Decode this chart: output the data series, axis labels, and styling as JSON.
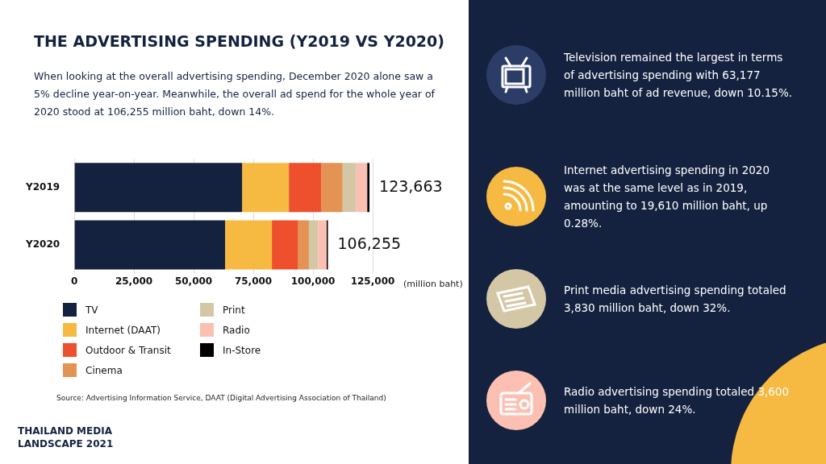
{
  "chart_data": {
    "type": "bar",
    "orientation": "horizontal",
    "stacked": true,
    "title": "THE ADVERTISING SPENDING (Y2019 VS Y2020)",
    "subtitle": "When looking at the overall advertising spending, December 2020 alone saw a 5% decline year-on-year. Meanwhile, the overall ad spend for the whole year of 2020 stood at 106,255 million baht, down 14%.",
    "xlabel": "(million baht)",
    "categories": [
      "Y2019",
      "Y2020"
    ],
    "series": [
      {
        "name": "TV",
        "color": "#142240",
        "values": [
          70300,
          63177
        ]
      },
      {
        "name": "Internet (DAAT)",
        "color": "#f6b942",
        "values": [
          19600,
          19610
        ]
      },
      {
        "name": "Outdoor & Transit",
        "color": "#ee4f2c",
        "values": [
          13600,
          11000
        ]
      },
      {
        "name": "Cinema",
        "color": "#e39455",
        "values": [
          8900,
          4500
        ]
      },
      {
        "name": "Print",
        "color": "#d4c7a5",
        "values": [
          5600,
          3830
        ]
      },
      {
        "name": "Radio",
        "color": "#fbc0b2",
        "values": [
          4700,
          3600
        ]
      },
      {
        "name": "In-Store",
        "color": "#000000",
        "values": [
          963,
          538
        ]
      }
    ],
    "totals": [
      "123,663",
      "106,255"
    ],
    "xlim": [
      0,
      125000
    ],
    "xticks": [
      0,
      {
        "value": 25000,
        "label": "25,000"
      },
      {
        "value": 50000,
        "label": "50,000"
      },
      {
        "value": 75000,
        "label": "75,000"
      },
      {
        "value": 100000,
        "label": "100,000"
      },
      {
        "value": 125000,
        "label": "125,000"
      }
    ],
    "grid": "x",
    "legend": "bottom",
    "annotations": [
      "Television remained the largest in terms of advertising spending with 63,177 million baht of ad revenue, down 10.15%.",
      "Internet advertising spending in 2020 was at the same level as in 2019, amounting to 19,610 million baht, up 0.28%.",
      "Print media advertising spending totaled 3,830 million baht, down 32%.",
      "Radio advertising spending totaled 3,600 million baht, down 24%.",
      "Source: Advertising Information Service, DAAT (Digital Advertising Association of Thailand)",
      "THAILAND MEDIA LANDSCAPE 2021"
    ]
  }
}
